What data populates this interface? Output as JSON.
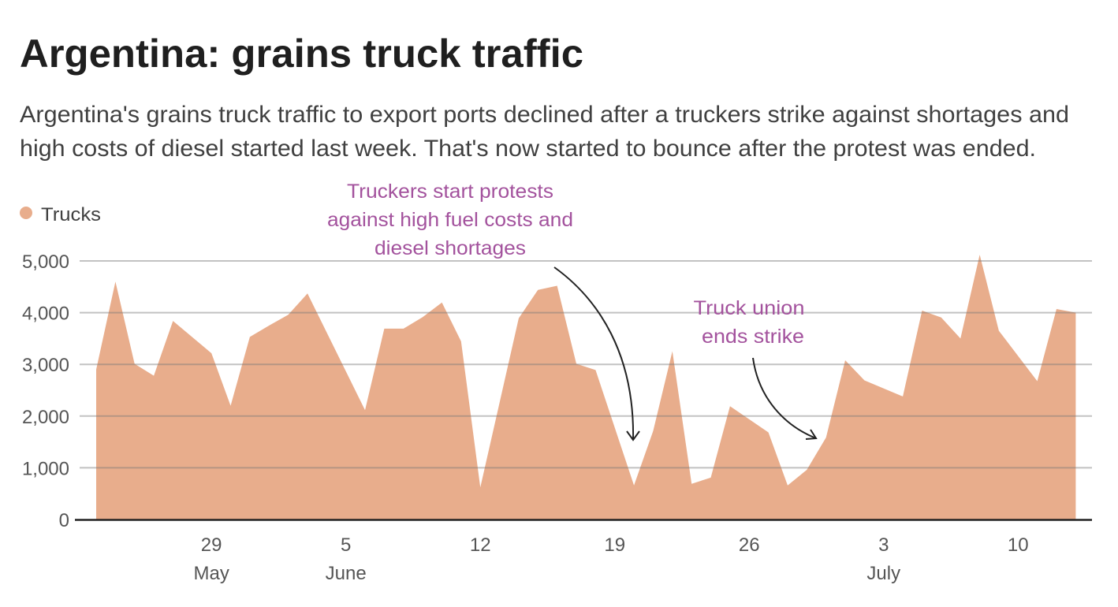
{
  "chart_data": {
    "type": "area",
    "title": "Argentina: grains truck traffic",
    "subtitle_lines": [
      "Argentina's grains truck traffic to export ports declined after a truckers strike against shortages and",
      "high costs of diesel started last week. That's now started to bounce after the protest was ended."
    ],
    "xlabel": "",
    "ylabel": "",
    "ylim": [
      0,
      5000
    ],
    "grid": true,
    "legend": {
      "position": "top-left",
      "entries": [
        "Trucks"
      ]
    },
    "y_ticks": [
      {
        "value": 0,
        "label": "0"
      },
      {
        "value": 1000,
        "label": "1,000"
      },
      {
        "value": 2000,
        "label": "2,000"
      },
      {
        "value": 3000,
        "label": "3,000"
      },
      {
        "value": 4000,
        "label": "4,000"
      },
      {
        "value": 5000,
        "label": "5,000"
      }
    ],
    "x_ticks": [
      {
        "date": "May 29",
        "label": "29",
        "month_label": "May"
      },
      {
        "date": "Jun 5",
        "label": "5",
        "month_label": "June"
      },
      {
        "date": "Jun 12",
        "label": "12",
        "month_label": ""
      },
      {
        "date": "Jun 19",
        "label": "19",
        "month_label": ""
      },
      {
        "date": "Jun 26",
        "label": "26",
        "month_label": ""
      },
      {
        "date": "Jul 3",
        "label": "3",
        "month_label": "July"
      },
      {
        "date": "Jul 10",
        "label": "10",
        "month_label": ""
      }
    ],
    "series": [
      {
        "name": "Trucks",
        "color": "#e8ad8c",
        "x": [
          "May 23",
          "May 24",
          "May 25",
          "May 26",
          "May 27",
          "May 29",
          "May 30",
          "May 31",
          "Jun 1",
          "Jun 2",
          "Jun 3",
          "Jun 6",
          "Jun 7",
          "Jun 8",
          "Jun 9",
          "Jun 10",
          "Jun 11",
          "Jun 12",
          "Jun 14",
          "Jun 15",
          "Jun 16",
          "Jun 17",
          "Jun 18",
          "Jun 20",
          "Jun 21",
          "Jun 22",
          "Jun 23",
          "Jun 24",
          "Jun 25",
          "Jun 27",
          "Jun 28",
          "Jun 29",
          "Jun 30",
          "Jul 1",
          "Jul 2",
          "Jul 4",
          "Jul 5",
          "Jul 6",
          "Jul 7",
          "Jul 8",
          "Jul 9",
          "Jul 11",
          "Jul 12",
          "Jul 13"
        ],
        "values": [
          2900,
          4600,
          3010,
          2780,
          3840,
          3215,
          2200,
          3530,
          3750,
          3960,
          4370,
          2115,
          3690,
          3690,
          3915,
          4195,
          3445,
          620,
          3890,
          4440,
          4520,
          3010,
          2890,
          660,
          1710,
          3255,
          690,
          810,
          2190,
          1685,
          660,
          960,
          1585,
          3080,
          2690,
          2380,
          4040,
          3905,
          3500,
          5120,
          3650,
          2675,
          4070,
          4000
        ]
      }
    ],
    "annotations": [
      {
        "lines": [
          "Truckers start protests",
          "against high fuel costs and",
          "diesel shortages"
        ],
        "points_to": "Jun 20",
        "color": "#a3529d"
      },
      {
        "lines": [
          "Truck union",
          "ends strike"
        ],
        "points_to": "Jun 30",
        "color": "#a3529d"
      }
    ]
  }
}
